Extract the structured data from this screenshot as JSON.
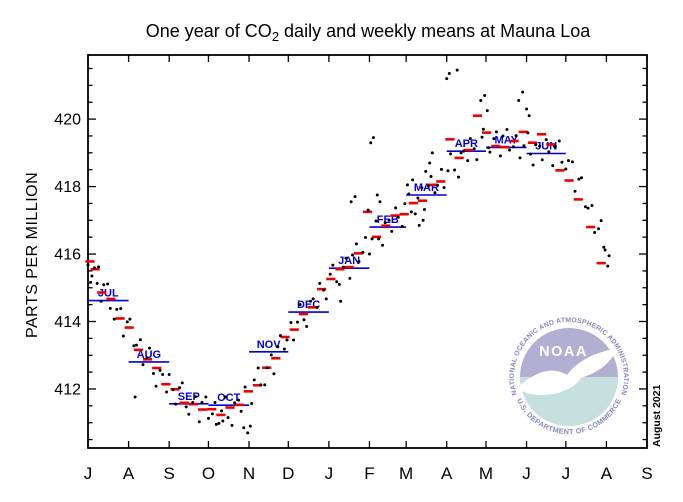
{
  "title": {
    "prefix": "One year of CO",
    "subscript": "2",
    "suffix": " daily and weekly means at Mauna Loa"
  },
  "y_axis": {
    "label": "PARTS PER MILLION",
    "major_ticks": [
      412,
      414,
      416,
      418,
      420
    ],
    "minor_tick_step": 0.5
  },
  "x_axis": {
    "month_labels": [
      "J",
      "A",
      "S",
      "O",
      "N",
      "D",
      "J",
      "F",
      "M",
      "A",
      "M",
      "J",
      "J",
      "A",
      "S"
    ],
    "month_tick_days": [
      0,
      31,
      62,
      92,
      123,
      153,
      184,
      215,
      243,
      274,
      304,
      335,
      365,
      396,
      427
    ]
  },
  "footer": {
    "date_label": "August 2021"
  },
  "logo": {
    "acronym": "NOAA",
    "ring_top": "NATIONAL OCEANIC AND ATMOSPHERIC ADMINISTRATION",
    "ring_bottom": "U.S. DEPARTMENT OF COMMERCE",
    "colors": {
      "upper": "#b2afd2",
      "lower": "#c6e0df",
      "ring_text": "#8886c2",
      "bird": "#ffffff",
      "acronym_text": "#ffffff"
    }
  },
  "colors": {
    "daily": "#000000",
    "weekly": "#ee0000",
    "monthly": "#0000dd",
    "axis": "#000000"
  },
  "chart_data": {
    "type": "scatter",
    "title": "One year of CO2 daily and weekly means at Mauna Loa",
    "xlabel": "",
    "ylabel": "PARTS PER MILLION",
    "x_unit": "days since 2020-07-01",
    "xlim_days": [
      0,
      427
    ],
    "ylim": [
      410.25,
      421.9
    ],
    "grid": false,
    "legend": "none",
    "series": [
      {
        "name": "daily means",
        "style": "scatter-dot",
        "color": "#000000",
        "points": [
          [
            0,
            415.67
          ],
          [
            2,
            415.16
          ],
          [
            3,
            415.35
          ],
          [
            5,
            415.59
          ],
          [
            7,
            415.13
          ],
          [
            8,
            415.62
          ],
          [
            10,
            414.6
          ],
          [
            12,
            415.09
          ],
          [
            15,
            415.11
          ],
          [
            17,
            414.39
          ],
          [
            20,
            414.07
          ],
          [
            22,
            414.36
          ],
          [
            25,
            414.38
          ],
          [
            27,
            413.57
          ],
          [
            30,
            413.99
          ],
          [
            32,
            414.07
          ],
          [
            35,
            413.28
          ],
          [
            36,
            411.76
          ],
          [
            37,
            413.3
          ],
          [
            40,
            413.46
          ],
          [
            42,
            412.72
          ],
          [
            45,
            412.92
          ],
          [
            47,
            413.21
          ],
          [
            50,
            412.46
          ],
          [
            52,
            412.08
          ],
          [
            55,
            412.55
          ],
          [
            57,
            412.43
          ],
          [
            60,
            411.91
          ],
          [
            62,
            412.43
          ],
          [
            65,
            411.98
          ],
          [
            67,
            411.55
          ],
          [
            70,
            412.04
          ],
          [
            72,
            412.18
          ],
          [
            75,
            411.47
          ],
          [
            77,
            411.25
          ],
          [
            80,
            411.6
          ],
          [
            82,
            411.77
          ],
          [
            85,
            411.03
          ],
          [
            87,
            411.6
          ],
          [
            90,
            411.76
          ],
          [
            92,
            411.13
          ],
          [
            95,
            411.26
          ],
          [
            97,
            411.6
          ],
          [
            98,
            410.95
          ],
          [
            100,
            410.98
          ],
          [
            102,
            411.35
          ],
          [
            103,
            411.05
          ],
          [
            105,
            411.76
          ],
          [
            107,
            411.15
          ],
          [
            110,
            410.92
          ],
          [
            112,
            411.59
          ],
          [
            115,
            411.67
          ],
          [
            117,
            411.34
          ],
          [
            119,
            410.85
          ],
          [
            120,
            412.06
          ],
          [
            122,
            410.7
          ],
          [
            124,
            410.9
          ],
          [
            125,
            411.57
          ],
          [
            127,
            412.27
          ],
          [
            130,
            412.62
          ],
          [
            132,
            412.12
          ],
          [
            135,
            412.12
          ],
          [
            137,
            412.63
          ],
          [
            140,
            413.01
          ],
          [
            142,
            412.45
          ],
          [
            145,
            413.25
          ],
          [
            147,
            413.58
          ],
          [
            150,
            413.18
          ],
          [
            152,
            413.45
          ],
          [
            155,
            413.97
          ],
          [
            157,
            413.45
          ],
          [
            160,
            413.98
          ],
          [
            162,
            414.5
          ],
          [
            165,
            414.05
          ],
          [
            167,
            413.85
          ],
          [
            170,
            414.6
          ],
          [
            172,
            414.67
          ],
          [
            175,
            414.42
          ],
          [
            177,
            415.13
          ],
          [
            180,
            414.93
          ],
          [
            182,
            414.67
          ],
          [
            185,
            415.4
          ],
          [
            187,
            415.67
          ],
          [
            190,
            415.18
          ],
          [
            192,
            415.1
          ],
          [
            193,
            414.6
          ],
          [
            195,
            415.61
          ],
          [
            197,
            415.88
          ],
          [
            200,
            415.28
          ],
          [
            201,
            417.55
          ],
          [
            202,
            415.97
          ],
          [
            204,
            417.7
          ],
          [
            205,
            416.3
          ],
          [
            207,
            415.78
          ],
          [
            210,
            416.05
          ],
          [
            212,
            416.49
          ],
          [
            214,
            417.3
          ],
          [
            215,
            416.0
          ],
          [
            216,
            419.3
          ],
          [
            217,
            416.45
          ],
          [
            218,
            419.45
          ],
          [
            220,
            416.98
          ],
          [
            221,
            417.75
          ],
          [
            222,
            416.45
          ],
          [
            223,
            417.55
          ],
          [
            225,
            416.26
          ],
          [
            227,
            416.93
          ],
          [
            230,
            417.0
          ],
          [
            232,
            416.67
          ],
          [
            235,
            417.37
          ],
          [
            237,
            417.09
          ],
          [
            240,
            416.82
          ],
          [
            242,
            417.49
          ],
          [
            244,
            418.05
          ],
          [
            245,
            417.78
          ],
          [
            247,
            417.25
          ],
          [
            248,
            418.2
          ],
          [
            250,
            417.19
          ],
          [
            252,
            417.66
          ],
          [
            253,
            416.85
          ],
          [
            255,
            417.96
          ],
          [
            256,
            417.0
          ],
          [
            257,
            417.32
          ],
          [
            258,
            418.45
          ],
          [
            260,
            418.02
          ],
          [
            261,
            418.7
          ],
          [
            262,
            418.3
          ],
          [
            263,
            419.0
          ],
          [
            265,
            417.82
          ],
          [
            267,
            418.04
          ],
          [
            270,
            418.51
          ],
          [
            272,
            417.97
          ],
          [
            274,
            421.2
          ],
          [
            275,
            418.47
          ],
          [
            276,
            421.35
          ],
          [
            277,
            418.97
          ],
          [
            280,
            418.49
          ],
          [
            282,
            421.45
          ],
          [
            283,
            418.28
          ],
          [
            285,
            419.0
          ],
          [
            287,
            419.05
          ],
          [
            290,
            418.77
          ],
          [
            292,
            419.42
          ],
          [
            295,
            419.12
          ],
          [
            297,
            418.8
          ],
          [
            300,
            420.55
          ],
          [
            301,
            419.46
          ],
          [
            302,
            419.7
          ],
          [
            303,
            420.7
          ],
          [
            305,
            420.25
          ],
          [
            306,
            419.15
          ],
          [
            307,
            419.02
          ],
          [
            310,
            419.42
          ],
          [
            312,
            419.62
          ],
          [
            315,
            418.91
          ],
          [
            317,
            419.5
          ],
          [
            320,
            419.69
          ],
          [
            322,
            419.08
          ],
          [
            325,
            419.18
          ],
          [
            327,
            419.51
          ],
          [
            329,
            420.55
          ],
          [
            330,
            418.85
          ],
          [
            332,
            420.8
          ],
          [
            333,
            419.21
          ],
          [
            335,
            420.3
          ],
          [
            336,
            419.59
          ],
          [
            337,
            420.1
          ],
          [
            338,
            418.96
          ],
          [
            340,
            418.64
          ],
          [
            342,
            419.24
          ],
          [
            345,
            419.2
          ],
          [
            347,
            418.79
          ],
          [
            350,
            419.39
          ],
          [
            352,
            419.03
          ],
          [
            355,
            418.62
          ],
          [
            357,
            419.19
          ],
          [
            360,
            419.35
          ],
          [
            362,
            418.72
          ],
          [
            365,
            418.52
          ],
          [
            367,
            418.77
          ],
          [
            370,
            418.73
          ],
          [
            372,
            417.86
          ],
          [
            375,
            418.22
          ],
          [
            377,
            418.26
          ],
          [
            380,
            417.4
          ],
          [
            382,
            417.36
          ],
          [
            385,
            417.44
          ],
          [
            387,
            416.64
          ],
          [
            390,
            416.75
          ],
          [
            392,
            416.99
          ],
          [
            394,
            416.2
          ],
          [
            395,
            416.12
          ],
          [
            397,
            415.64
          ],
          [
            398,
            415.95
          ]
        ]
      },
      {
        "name": "weekly means",
        "style": "horizontal-dash",
        "color": "#ee0000",
        "half_width_days": 3.5,
        "points": [
          [
            1.5,
            415.78
          ],
          [
            5.5,
            415.55
          ],
          [
            10.5,
            414.86
          ],
          [
            17.5,
            414.67
          ],
          [
            24.5,
            414.09
          ],
          [
            31.5,
            413.82
          ],
          [
            38.5,
            413.16
          ],
          [
            45.5,
            412.88
          ],
          [
            52.5,
            412.62
          ],
          [
            59.5,
            412.14
          ],
          [
            66.5,
            411.99
          ],
          [
            73.5,
            411.59
          ],
          [
            80.5,
            411.55
          ],
          [
            87.5,
            411.39
          ],
          [
            94.5,
            411.4
          ],
          [
            101.5,
            411.23
          ],
          [
            108.5,
            411.45
          ],
          [
            115.5,
            411.53
          ],
          [
            122.5,
            411.93
          ],
          [
            129.5,
            412.11
          ],
          [
            136.5,
            412.63
          ],
          [
            143.5,
            412.91
          ],
          [
            150.5,
            413.54
          ],
          [
            157.5,
            413.76
          ],
          [
            164.5,
            414.22
          ],
          [
            171.5,
            414.42
          ],
          [
            178.5,
            414.96
          ],
          [
            185.5,
            415.26
          ],
          [
            192.5,
            415.55
          ],
          [
            199.5,
            415.61
          ],
          [
            206.5,
            416.02
          ],
          [
            213.5,
            417.25
          ],
          [
            220.5,
            416.51
          ],
          [
            227.5,
            416.84
          ],
          [
            234.5,
            417.14
          ],
          [
            241.5,
            417.18
          ],
          [
            248.5,
            417.51
          ],
          [
            255.5,
            417.58
          ],
          [
            262.5,
            418.05
          ],
          [
            269.5,
            418.15
          ],
          [
            276.5,
            419.4
          ],
          [
            283.5,
            418.85
          ],
          [
            290.5,
            419.08
          ],
          [
            297.5,
            420.1
          ],
          [
            304.5,
            419.6
          ],
          [
            311.5,
            419.2
          ],
          [
            318.5,
            419.17
          ],
          [
            325.5,
            419.35
          ],
          [
            332.5,
            419.62
          ],
          [
            339.5,
            419.3
          ],
          [
            346.5,
            419.55
          ],
          [
            353.5,
            419.25
          ],
          [
            360.5,
            418.48
          ],
          [
            367.5,
            418.18
          ],
          [
            374.5,
            417.62
          ],
          [
            384,
            416.8
          ],
          [
            392,
            415.73
          ]
        ]
      },
      {
        "name": "monthly means",
        "style": "horizontal-line",
        "color": "#0000dd",
        "segments": [
          {
            "label": "JUL",
            "start_day": 0,
            "end_day": 31,
            "value": 414.62
          },
          {
            "label": "AUG",
            "start_day": 31,
            "end_day": 62,
            "value": 412.8
          },
          {
            "label": "SEP",
            "start_day": 62,
            "end_day": 92,
            "value": 411.56
          },
          {
            "label": "OCT",
            "start_day": 92,
            "end_day": 123,
            "value": 411.52
          },
          {
            "label": "NOV",
            "start_day": 123,
            "end_day": 153,
            "value": 413.1
          },
          {
            "label": "DEC",
            "start_day": 153,
            "end_day": 184,
            "value": 414.28
          },
          {
            "label": "JAN",
            "start_day": 184,
            "end_day": 215,
            "value": 415.58
          },
          {
            "label": "FEB",
            "start_day": 215,
            "end_day": 243,
            "value": 416.8
          },
          {
            "label": "MAR",
            "start_day": 243,
            "end_day": 274,
            "value": 417.75
          },
          {
            "label": "APR",
            "start_day": 274,
            "end_day": 304,
            "value": 419.05
          },
          {
            "label": "MAY",
            "start_day": 304,
            "end_day": 335,
            "value": 419.16
          },
          {
            "label": "JUN",
            "start_day": 335,
            "end_day": 365,
            "value": 418.98
          }
        ]
      }
    ]
  }
}
